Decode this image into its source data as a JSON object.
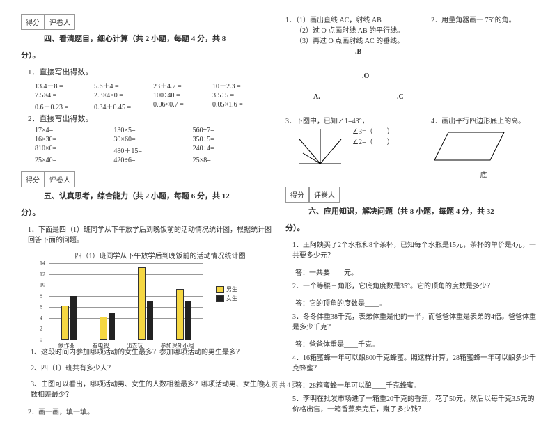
{
  "common": {
    "score_label": "得分",
    "grader_label": "评卷人"
  },
  "section4": {
    "title_a": "四、看清题目，细心计算（共 2 小题，每题 4 分，共 8",
    "title_b": "分）。",
    "sub1": "1．直接写出得数。",
    "rows1": [
      [
        "13.4－8 =",
        "5.6＋4 =",
        "23＋4.7 =",
        "10－2.3 ="
      ],
      [
        "7.5×4 =",
        "2.3×4×0 =",
        "100÷40 =",
        "3.5÷5 ="
      ],
      [
        "0.6－0.23 =",
        "0.34＋0.45 =",
        "0.06×0.7 =",
        "0.05×1.6 ="
      ]
    ],
    "sub2": "2．直接写出得数。",
    "rows2": [
      [
        "17×4=",
        "130×5=",
        "560÷7="
      ],
      [
        "16×30=",
        "30×60=",
        "350÷5="
      ],
      [
        "810×0=",
        "480＋15=",
        "240÷4="
      ],
      [
        "25×40=",
        "420÷6=",
        "25×8="
      ]
    ]
  },
  "section5": {
    "title_a": "五、认真思考，综合能力（共 2 小题，每题 6 分，共 12",
    "title_b": "分）。",
    "q1": "1．下面是四（1）班同学从下午放学后到晚饭前的活动情况统计图，根据统计图回答下面的问题。",
    "chart_title": "四（1）班同学从下午放学后到晚饭前的活动情况统计图",
    "ylabels": [
      "14",
      "12",
      "10",
      "8",
      "6",
      "4",
      "2",
      "0"
    ],
    "categories": [
      "做作业",
      "看电视",
      "出去玩",
      "参加课外小组"
    ],
    "legend_boy": "男生",
    "legend_girl": "女生",
    "bars": [
      {
        "boy": 6,
        "girl": 8
      },
      {
        "boy": 4,
        "girl": 5
      },
      {
        "boy": 13,
        "girl": 7
      },
      {
        "boy": 9,
        "girl": 7
      }
    ],
    "ymax": 14,
    "grid_step": 2,
    "colors": {
      "boy": "#f5d742",
      "girl": "#222222",
      "grid": "#999999",
      "border": "#000000"
    },
    "q1a": "1、这段时间内参加哪项活动的女生最多？参加哪项活动的男生最多？",
    "q1b": "2、四（1）班共有多少人？",
    "q1c": "3、由图可以看出，哪项活动男、女生的人数相差最多？哪项活动男、女生的人数相差最少？",
    "q2": "2．画一画，填一填。"
  },
  "rightTop": {
    "q1_line1": "1．（1）画出直线 AC，射线 AB",
    "q1_line2": "（2）过 O 点画射线 AB 的平行线。",
    "q1_line3": "（3）再过 O 点画射线 AC 的垂线。",
    "q2": "2．用量角器画一 75°的角。",
    "label_B": ".B",
    "label_O": ".O",
    "label_A": "A.",
    "label_C": ".C",
    "q3": "3．下图中，已知∠1=43°，",
    "q3_a": "∠3=（　　）",
    "q3_b": "∠2=（　　）",
    "q4": "4．画出平行四边形底上的高。",
    "q4_base": "底"
  },
  "section6": {
    "title_a": "六、应用知识，解决问题（共 8 小题，每题 4 分，共 32",
    "title_b": "分）。",
    "q1": "1．王阿姨买了2个水瓶和8个茶杯，已知每个水瓶是15元，茶杯的单价是4元，一共要多少元？",
    "a1": "答：一共要____元。",
    "q2": "2．一个等腰三角形，它底角度数是35°。它的顶角的度数是多少？",
    "a2": "答：它的顶角的度数是____。",
    "q3": "3．冬冬体重38千克，表弟体重是他的一半，而爸爸体重是表弟的4倍。爸爸体重是多少千克？",
    "a3": "答：爸爸体重是____千克。",
    "q4": "4．16箱蜜蜂一年可以酿800千克蜂蜜。照这样计算，28箱蜜蜂一年可以酿多少千克蜂蜜？",
    "a4": "答：28箱蜜蜂一年可以酿____千克蜂蜜。",
    "q5": "5．李明在批发市场进了一箱重20千克的香蕉，花了50元，然后以每千克3.5元的价格出售，一箱香蕉卖完后，赚了多少钱？"
  },
  "footer": "第 2 页 共 4 页"
}
